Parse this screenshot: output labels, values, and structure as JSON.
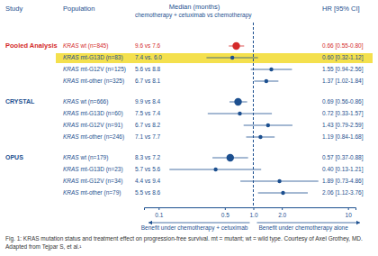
{
  "chart_data": {
    "type": "forest",
    "columns": [
      "Study",
      "Population",
      "Median (months)",
      "HR [95% CI]"
    ],
    "subheader": "chemotherapy + cetuximab vs chemotherapy",
    "log": "x",
    "xlim": [
      0.07,
      12
    ],
    "xticks": [
      0.1,
      0.5,
      {
        "value": 1,
        "label": "1.0"
      },
      {
        "value": 2,
        "label": "2.0"
      },
      10
    ],
    "reference_line": 1,
    "annotations": [
      "Benefit under chemotherapy + cetuximab",
      "Benefit under chemotherapy alone"
    ],
    "caption": "Fig. 1: KRAS mutation status and treatment effect on progression-free survival. mt = mutant; wt = wild type. Courtesy of Axel Grothey, MD. Adapted from Tejpar S, et al.¹",
    "groups": [
      {
        "name": "Pooled Analysis",
        "color": "#d42a2a",
        "rows": [
          {
            "label": "KRAS wt (n=845)",
            "median": "9.6 vs 7.6",
            "hr": 0.66,
            "ci": [
              0.55,
              0.8
            ],
            "hr_label": "0.66 [0.55-0.80]",
            "marker": "circle-large",
            "colors": [
              "#d42a2a",
              null
            ]
          },
          {
            "label": "KRAS mt-G13D (n=83)",
            "median": "7.4 vs. 6.0",
            "hr": 0.6,
            "ci": [
              0.32,
              1.12
            ],
            "hr_label": "0.60 [0.32-1.12]",
            "marker": "circle",
            "colors": [
              "#1c4f8f",
              "#f4e04d"
            ]
          },
          {
            "label": "KRAS mt-G12V (n=125)",
            "median": "5.6 vs 8.8",
            "hr": 1.55,
            "ci": [
              0.94,
              2.56
            ],
            "hr_label": "1.55 [0.94-2.56]",
            "marker": "circle",
            "colors": [
              "#1c4f8f",
              null
            ]
          },
          {
            "label": "KRAS mt-other (n=325)",
            "median": "6.7 vs 8.1",
            "hr": 1.37,
            "ci": [
              1.02,
              1.84
            ],
            "hr_label": "1.37 [1.02-1.84]",
            "marker": "circle",
            "colors": [
              "#1c4f8f",
              null
            ]
          }
        ]
      },
      {
        "name": "CRYSTAL",
        "color": "#1c4f8f",
        "rows": [
          {
            "label": "KRAS wt (n=666)",
            "median": "9.9 vs 8.4",
            "hr": 0.69,
            "ci": [
              0.56,
              0.86
            ],
            "hr_label": "0.69 [0.56-0.86]",
            "marker": "circle-large",
            "colors": [
              "#1c4f8f",
              null
            ]
          },
          {
            "label": "KRAS mt-G13D (n=60)",
            "median": "7.5 vs 7.4",
            "hr": 0.72,
            "ci": [
              0.33,
              1.57
            ],
            "hr_label": "0.72 [0.33-1.57]",
            "marker": "circle",
            "colors": [
              "#1c4f8f",
              null
            ]
          },
          {
            "label": "KRAS mt-G12V (n=91)",
            "median": "6.7 vs 8.2",
            "hr": 1.43,
            "ci": [
              0.79,
              2.59
            ],
            "hr_label": "1.43 [0.79-2.59]",
            "marker": "circle",
            "colors": [
              "#1c4f8f",
              null
            ]
          },
          {
            "label": "KRAS mt-other (n=246)",
            "median": "7.1 vs 7.7",
            "hr": 1.19,
            "ci": [
              0.84,
              1.68
            ],
            "hr_label": "1.19 [0.84-1.68]",
            "marker": "circle",
            "colors": [
              "#1c4f8f",
              null
            ]
          }
        ]
      },
      {
        "name": "OPUS",
        "color": "#1c4f8f",
        "rows": [
          {
            "label": "KRAS wt (n=179)",
            "median": "8.3 vs 7.2",
            "hr": 0.57,
            "ci": [
              0.37,
              0.88
            ],
            "hr_label": "0.57 [0.37-0.88]",
            "marker": "circle-large",
            "colors": [
              "#1c4f8f",
              null
            ]
          },
          {
            "label": "KRAS mt-G13D (n=23)",
            "median": "5.7 vs 5.6",
            "hr": 0.4,
            "ci": [
              0.13,
              1.21
            ],
            "hr_label": "0.40 [0.13-1.21]",
            "marker": "circle",
            "colors": [
              "#1c4f8f",
              null
            ]
          },
          {
            "label": "KRAS mt-G12V (n=34)",
            "median": "4.4 vs 9.4",
            "hr": 1.89,
            "ci": [
              0.73,
              4.86
            ],
            "hr_label": "1.89 [0.73-4.86]",
            "marker": "circle",
            "colors": [
              "#1c4f8f",
              null
            ]
          },
          {
            "label": "KRAS mt-other (n=79)",
            "median": "5.5 vs 8.6",
            "hr": 2.06,
            "ci": [
              1.12,
              3.76
            ],
            "hr_label": "2.06 [1.12-3.76]",
            "marker": "circle",
            "colors": [
              "#1c4f8f",
              null
            ]
          }
        ]
      }
    ]
  }
}
